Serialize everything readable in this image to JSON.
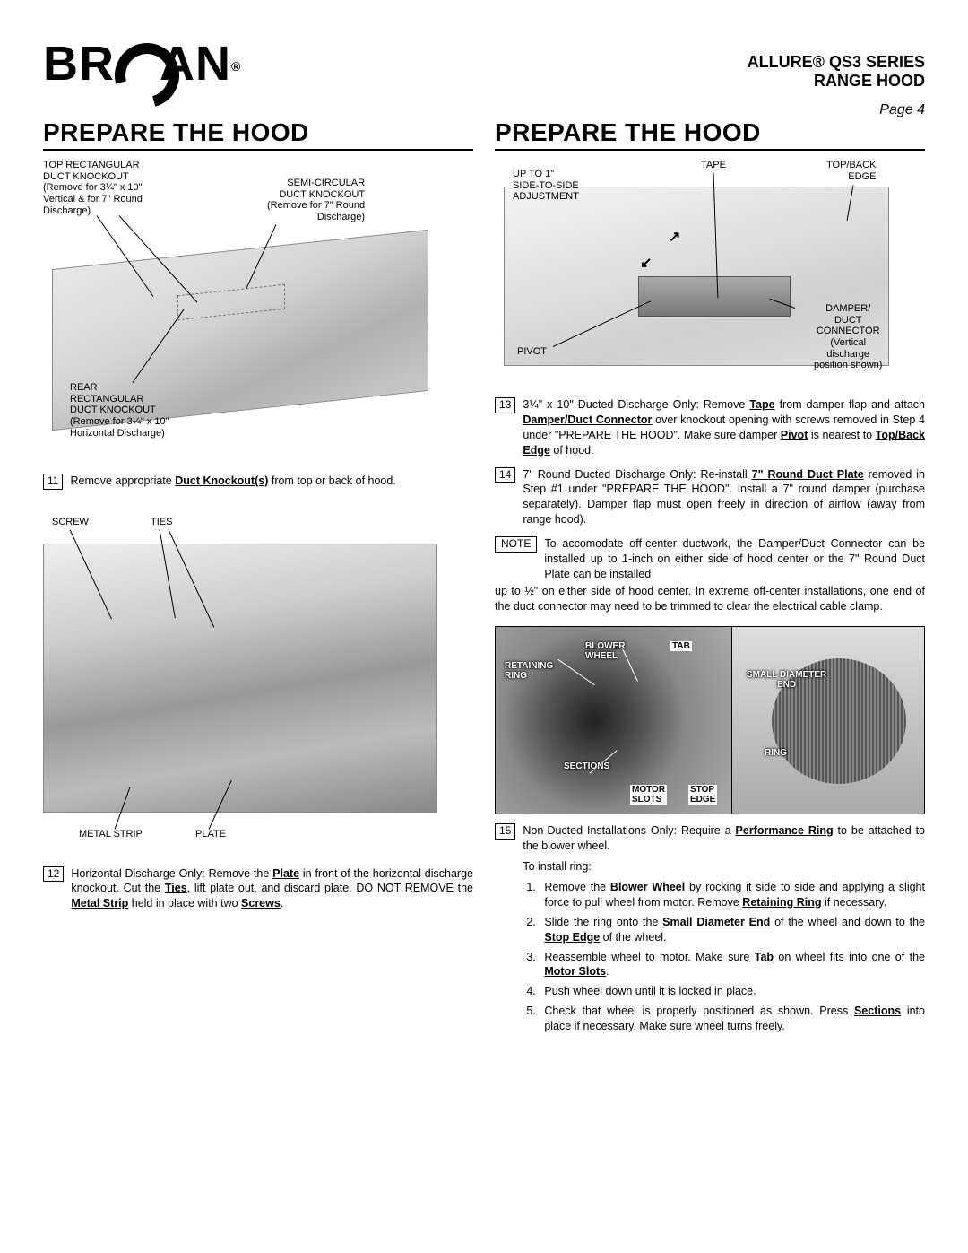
{
  "logo_text_a": "BR",
  "logo_text_b": "AN",
  "logo_reg": "®",
  "product_name_1": "ALLURE®  QS3 SERIES",
  "product_name_2": "RANGE HOOD",
  "page_label": "Page 4",
  "left": {
    "title": "PREPARE THE HOOD",
    "fig1": {
      "top_rect_1": "TOP RECTANGULAR",
      "top_rect_2": "DUCT KNOCKOUT",
      "top_rect_3": "(Remove for 3¼\" x 10\"",
      "top_rect_4": "Vertical & for 7\" Round",
      "top_rect_5": "Discharge)",
      "semi_1": "SEMI-CIRCULAR",
      "semi_2": "DUCT KNOCKOUT",
      "semi_3": "(Remove for 7\" Round",
      "semi_4": "Discharge)",
      "rear_1": "REAR",
      "rear_2": "RECTANGULAR",
      "rear_3": "DUCT KNOCKOUT",
      "rear_4": "(Remove for 3¼\" x 10\"",
      "rear_5": "Horizontal Discharge)"
    },
    "step11_num": "11",
    "step11": "Remove appropriate <span class='u'>Duct Knockout(s)</span> from top or back of hood.",
    "fig2": {
      "screw": "SCREW",
      "ties": "TIES",
      "metal_strip": "METAL STRIP",
      "plate": "PLATE"
    },
    "step12_num": "12",
    "step12": "Horizontal Discharge Only: Remove the <span class='u'>Plate</span> in front of the horizontal discharge knockout. Cut the <span class='u'>Ties</span>, lift plate out, and discard plate. DO NOT REMOVE the <span class='u'>Metal Strip</span> held in place with two <span class='u'>Screws</span>."
  },
  "right": {
    "title": "PREPARE THE HOOD",
    "fig3": {
      "upto_1": "UP TO 1\"",
      "upto_2": "SIDE-TO-SIDE",
      "upto_3": "ADJUSTMENT",
      "tape": "TAPE",
      "topback_1": "TOP/BACK",
      "topback_2": "EDGE",
      "pivot": "PIVOT",
      "damper_1": "DAMPER/",
      "damper_2": "DUCT",
      "damper_3": "CONNECTOR",
      "damper_4": "(Vertical",
      "damper_5": "discharge",
      "damper_6": "position shown)"
    },
    "step13_num": "13",
    "step13": "3¼\" x 10\" Ducted Discharge Only: Remove <span class='u'>Tape</span> from damper flap and attach <span class='u'>Damper/Duct Connector</span> over knockout opening with screws removed in Step 4 under \"PREPARE THE HOOD\". Make sure damper <span class='u'>Pivot</span> is nearest to <span class='u'>Top/Back Edge</span> of hood.",
    "step14_num": "14",
    "step14": "7\" Round Ducted Discharge Only: Re-install <span class='u'>7\" Round Duct Plate</span> removed in Step #1 under \"PREPARE THE HOOD\". Install a 7\" round damper (purchase separately). Damper flap must open freely in direction of airflow (away from range hood).",
    "note_label": "NOTE",
    "note_text": "To accomodate off-center ductwork, the Damper/Duct Connector can be installed up to 1-inch on either side of hood center or the 7\" Round Duct Plate can be installed up to ½\" on either side of hood center. In extreme off-center installations, one end of the duct connector may need to be trimmed to clear the electrical cable clamp.",
    "fig4": {
      "retaining_ring": "RETAINING RING",
      "blower_wheel": "BLOWER WHEEL",
      "tab": "TAB",
      "small_diam_1": "SMALL DIAMETER",
      "small_diam_2": "END",
      "ring": "RING",
      "sections": "SECTIONS",
      "motor_slots": "MOTOR SLOTS",
      "stop_edge": "STOP EDGE"
    },
    "step15_num": "15",
    "step15": "Non-Ducted Installations Only: Require a <span class='u'>Performance Ring</span> to be attached to the blower wheel.",
    "step15_a": "To install ring:",
    "sub1_num": "1.",
    "sub1": "Remove the <span class='u'>Blower Wheel</span> by rocking it side to side and applying a slight force to pull wheel from motor. Remove <span class='u'>Retaining Ring</span> if necessary.",
    "sub2_num": "2.",
    "sub2": "Slide the ring onto the <span class='u'>Small Diameter End</span> of the wheel and down to the <span class='u'>Stop Edge</span> of the wheel.",
    "sub3_num": "3.",
    "sub3": "Reassemble wheel to motor. Make sure <span class='u'>Tab</span> on wheel fits into one of the <span class='u'>Motor Slots</span>.",
    "sub4_num": "4.",
    "sub4": "Push wheel down until it is locked in place.",
    "sub5_num": "5.",
    "sub5": "Check that wheel is properly positioned as shown. Press <span class='u'>Sections</span> into place if necessary. Make sure wheel turns freely."
  }
}
